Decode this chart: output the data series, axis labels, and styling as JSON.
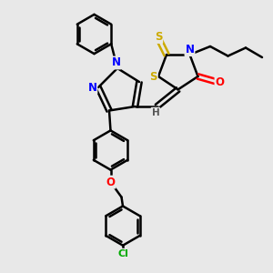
{
  "bg_color": "#e8e8e8",
  "bond_color": "#000000",
  "atom_colors": {
    "N": "#0000ff",
    "O": "#ff0000",
    "S": "#ccaa00",
    "Cl": "#00aa00",
    "H": "#555555",
    "C": "#000000"
  },
  "bond_width": 1.8,
  "figsize": [
    3.0,
    3.0
  ],
  "dpi": 100,
  "xlim": [
    0,
    10
  ],
  "ylim": [
    0,
    10
  ]
}
